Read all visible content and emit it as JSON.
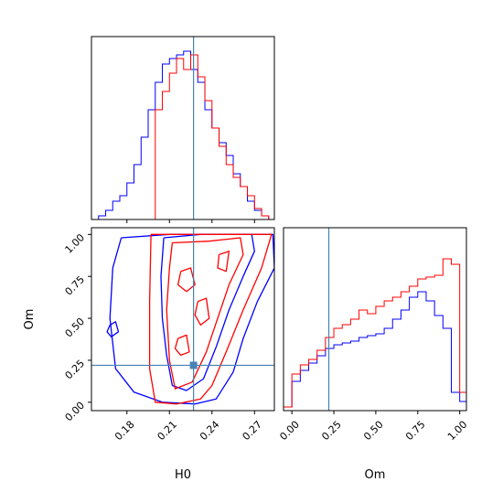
{
  "chart_data": {
    "type": "corner",
    "colors": {
      "series_a": "#0000ff",
      "series_b": "#ff0000",
      "truth": "#4682b4"
    },
    "truth": {
      "H0": 0.227,
      "Om": 0.22
    },
    "axes": {
      "H0": {
        "label": "H0",
        "range": [
          0.155,
          0.284
        ],
        "ticks": [
          0.18,
          0.21,
          0.24,
          0.27
        ],
        "tick_labels": [
          "0.18",
          "0.21",
          "0.24",
          "0.27"
        ]
      },
      "Om": {
        "label": "Om",
        "range": [
          -0.05,
          1.04
        ],
        "ticks": [
          0.0,
          0.25,
          0.5,
          0.75,
          1.0
        ],
        "tick_labels": [
          "0.00",
          "0.25",
          "0.50",
          "0.75",
          "1.00"
        ]
      }
    },
    "hist_H0": {
      "bin_edges": [
        0.155,
        0.16,
        0.165,
        0.17,
        0.175,
        0.18,
        0.185,
        0.19,
        0.195,
        0.2,
        0.205,
        0.21,
        0.215,
        0.22,
        0.225,
        0.23,
        0.235,
        0.24,
        0.245,
        0.25,
        0.255,
        0.26,
        0.265,
        0.27,
        0.275,
        0.28,
        0.284
      ],
      "series": [
        {
          "name": "",
          "color": "series_a",
          "values": [
            0,
            0.02,
            0.05,
            0.1,
            0.13,
            0.2,
            0.3,
            0.45,
            0.6,
            0.75,
            0.85,
            0.88,
            0.9,
            0.92,
            0.82,
            0.75,
            0.6,
            0.5,
            0.42,
            0.35,
            0.25,
            0.18,
            0.1,
            0.05,
            0.02,
            0
          ]
        },
        {
          "name": "",
          "color": "series_b",
          "values": [
            0,
            0,
            0,
            0,
            0,
            0,
            0,
            0,
            0,
            0.6,
            0.7,
            0.8,
            0.88,
            0.82,
            0.9,
            0.78,
            0.65,
            0.5,
            0.4,
            0.3,
            0.23,
            0.18,
            0.13,
            0.06,
            0.02,
            0
          ]
        }
      ]
    },
    "hist_Om": {
      "bin_edges": [
        -0.05,
        0.0,
        0.05,
        0.1,
        0.15,
        0.2,
        0.25,
        0.3,
        0.35,
        0.4,
        0.45,
        0.5,
        0.55,
        0.6,
        0.65,
        0.7,
        0.75,
        0.8,
        0.85,
        0.9,
        0.95,
        1.0,
        1.04
      ],
      "series": [
        {
          "name": "",
          "color": "series_a",
          "values": [
            0.02,
            0.16,
            0.22,
            0.26,
            0.3,
            0.34,
            0.36,
            0.37,
            0.38,
            0.4,
            0.41,
            0.42,
            0.45,
            0.5,
            0.55,
            0.62,
            0.65,
            0.6,
            0.52,
            0.45,
            0.1,
            0.05
          ]
        },
        {
          "name": "",
          "color": "series_b",
          "values": [
            0.02,
            0.2,
            0.25,
            0.28,
            0.33,
            0.4,
            0.45,
            0.47,
            0.5,
            0.55,
            0.53,
            0.57,
            0.6,
            0.62,
            0.65,
            0.68,
            0.72,
            0.73,
            0.74,
            0.83,
            0.8,
            0.1
          ]
        }
      ]
    },
    "scatter_H0_Om": {
      "truth_point": {
        "x": 0.227,
        "y": 0.22
      },
      "series": [
        {
          "name": "",
          "color": "series_a",
          "contours": [
            [
              [
                0.176,
                0.98
              ],
              [
                0.21,
                1.0
              ],
              [
                0.283,
                1.0
              ],
              [
                0.284,
                0.8
              ],
              [
                0.272,
                0.6
              ],
              [
                0.262,
                0.38
              ],
              [
                0.255,
                0.18
              ],
              [
                0.243,
                0.02
              ],
              [
                0.228,
                -0.01
              ],
              [
                0.205,
                0.0
              ],
              [
                0.185,
                0.06
              ],
              [
                0.172,
                0.2
              ],
              [
                0.168,
                0.5
              ],
              [
                0.17,
                0.8
              ],
              [
                0.176,
                0.98
              ]
            ],
            [
              [
                0.168,
                0.46
              ],
              [
                0.172,
                0.48
              ],
              [
                0.174,
                0.42
              ],
              [
                0.169,
                0.39
              ],
              [
                0.166,
                0.42
              ],
              [
                0.168,
                0.46
              ]
            ],
            [
              [
                0.206,
                0.98
              ],
              [
                0.232,
                1.0
              ],
              [
                0.268,
                1.0
              ],
              [
                0.27,
                0.9
              ],
              [
                0.262,
                0.75
              ],
              [
                0.252,
                0.55
              ],
              [
                0.243,
                0.33
              ],
              [
                0.234,
                0.14
              ],
              [
                0.222,
                0.07
              ],
              [
                0.212,
                0.1
              ],
              [
                0.208,
                0.28
              ],
              [
                0.205,
                0.5
              ],
              [
                0.204,
                0.75
              ],
              [
                0.206,
                0.98
              ]
            ]
          ]
        },
        {
          "name": "",
          "color": "series_b",
          "contours": [
            [
              [
                0.197,
                1.0
              ],
              [
                0.282,
                1.0
              ],
              [
                0.275,
                0.8
              ],
              [
                0.262,
                0.55
              ],
              [
                0.25,
                0.3
              ],
              [
                0.24,
                0.1
              ],
              [
                0.232,
                0.02
              ],
              [
                0.215,
                -0.01
              ],
              [
                0.2,
                0.0
              ],
              [
                0.196,
                0.2
              ],
              [
                0.196,
                0.6
              ],
              [
                0.197,
                1.0
              ]
            ],
            [
              [
                0.212,
                0.95
              ],
              [
                0.238,
                0.96
              ],
              [
                0.26,
                0.98
              ],
              [
                0.262,
                0.88
              ],
              [
                0.252,
                0.7
              ],
              [
                0.244,
                0.5
              ],
              [
                0.236,
                0.3
              ],
              [
                0.226,
                0.12
              ],
              [
                0.214,
                0.08
              ],
              [
                0.21,
                0.25
              ],
              [
                0.208,
                0.55
              ],
              [
                0.21,
                0.8
              ],
              [
                0.212,
                0.95
              ]
            ],
            [
              [
                0.218,
                0.78
              ],
              [
                0.225,
                0.8
              ],
              [
                0.228,
                0.7
              ],
              [
                0.222,
                0.66
              ],
              [
                0.216,
                0.7
              ],
              [
                0.218,
                0.78
              ]
            ],
            [
              [
                0.23,
                0.6
              ],
              [
                0.236,
                0.62
              ],
              [
                0.238,
                0.5
              ],
              [
                0.232,
                0.46
              ],
              [
                0.228,
                0.52
              ],
              [
                0.23,
                0.6
              ]
            ],
            [
              [
                0.245,
                0.88
              ],
              [
                0.252,
                0.9
              ],
              [
                0.25,
                0.78
              ],
              [
                0.244,
                0.8
              ],
              [
                0.245,
                0.88
              ]
            ],
            [
              [
                0.216,
                0.38
              ],
              [
                0.222,
                0.4
              ],
              [
                0.224,
                0.3
              ],
              [
                0.218,
                0.28
              ],
              [
                0.214,
                0.32
              ],
              [
                0.216,
                0.38
              ]
            ]
          ]
        }
      ]
    }
  }
}
